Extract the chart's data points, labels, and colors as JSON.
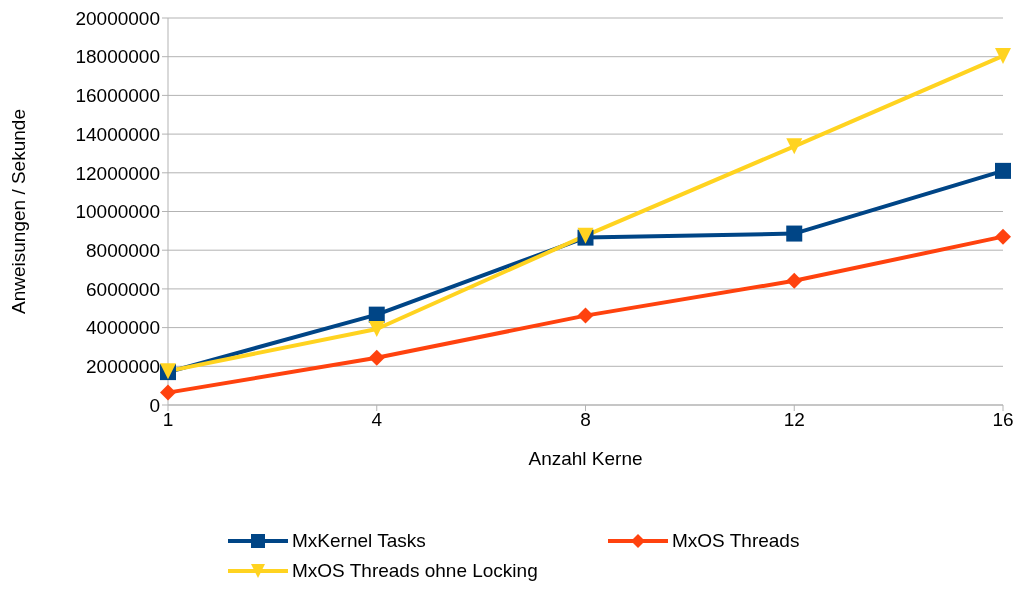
{
  "chart_data": {
    "type": "line",
    "xlabel": "Anzahl Kerne",
    "ylabel": "Anweisungen / Sekunde",
    "categories": [
      "1",
      "4",
      "8",
      "12",
      "16"
    ],
    "series": [
      {
        "name": "MxKernel Tasks",
        "color": "#004586",
        "marker": "square",
        "values": [
          1700000,
          4670000,
          8650000,
          8860000,
          12100000
        ]
      },
      {
        "name": "MxOS Threads",
        "color": "#ff420e",
        "marker": "diamond",
        "values": [
          640000,
          2440000,
          4620000,
          6420000,
          8700000
        ]
      },
      {
        "name": "MxOS Threads ohne Locking",
        "color": "#ffd320",
        "marker": "triangle",
        "values": [
          1750000,
          3930000,
          8750000,
          13370000,
          18040000
        ]
      }
    ],
    "ylim": [
      0,
      20000000
    ],
    "yticks": [
      0,
      2000000,
      4000000,
      6000000,
      8000000,
      10000000,
      12000000,
      14000000,
      16000000,
      18000000,
      20000000
    ],
    "grid": "y",
    "legend": "bottom",
    "line_style": "solid"
  }
}
